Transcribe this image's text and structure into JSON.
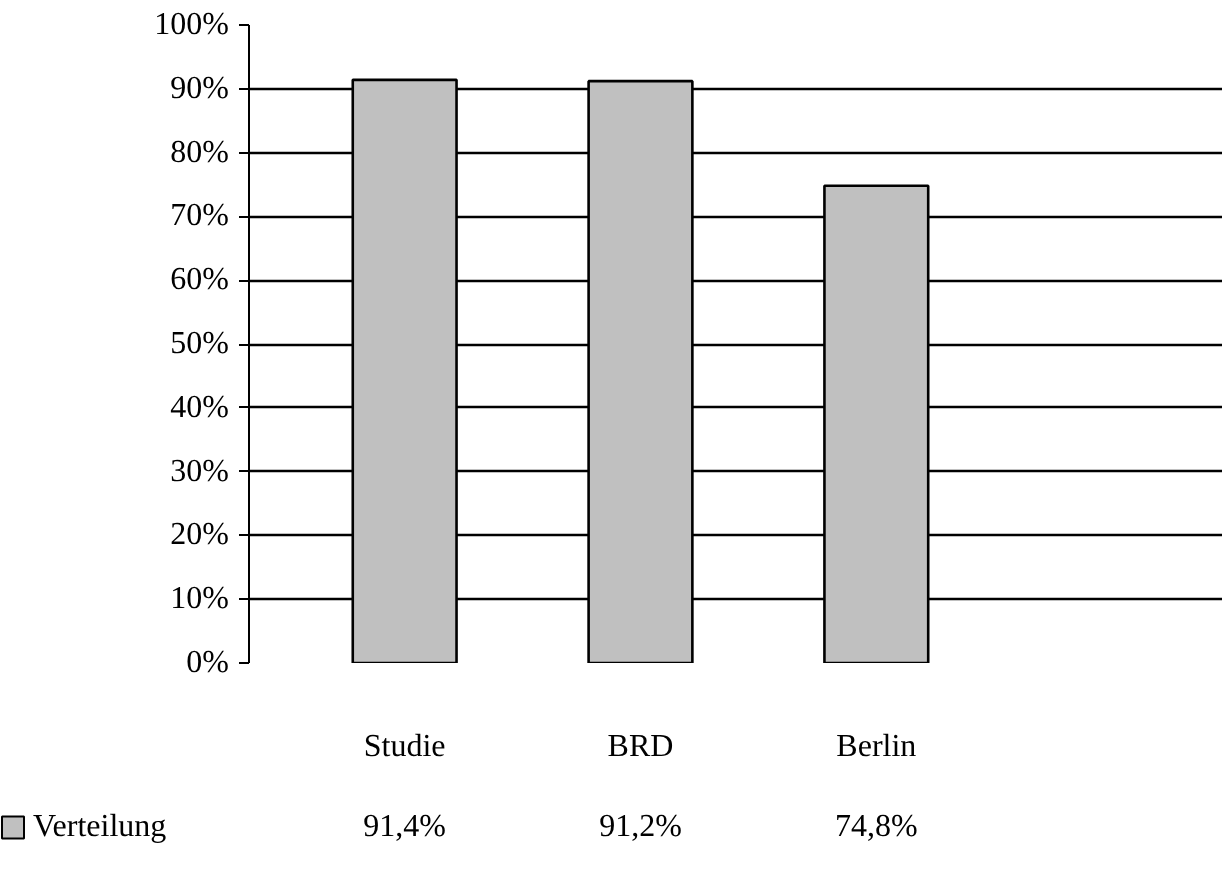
{
  "chart_data": {
    "type": "bar",
    "categories": [
      "Studie",
      "BRD",
      "Berlin"
    ],
    "series": [
      {
        "name": "Verteilung",
        "color": "#c0c0c0",
        "values": [
          91.4,
          91.2,
          74.8
        ],
        "value_labels": [
          "91,4%",
          "91,2%",
          "74,8%"
        ]
      }
    ],
    "ylim": [
      0,
      100
    ],
    "yticks": [
      {
        "value": 0,
        "label": "0%"
      },
      {
        "value": 10,
        "label": "10%"
      },
      {
        "value": 20,
        "label": "20%"
      },
      {
        "value": 30,
        "label": "30%"
      },
      {
        "value": 40,
        "label": "40%"
      },
      {
        "value": 50,
        "label": "50%"
      },
      {
        "value": 60,
        "label": "60%"
      },
      {
        "value": 70,
        "label": "70%"
      },
      {
        "value": 80,
        "label": "80%"
      },
      {
        "value": 90,
        "label": "90%"
      },
      {
        "value": 100,
        "label": "100%"
      }
    ],
    "grid": "y",
    "legend": "bottom left"
  }
}
